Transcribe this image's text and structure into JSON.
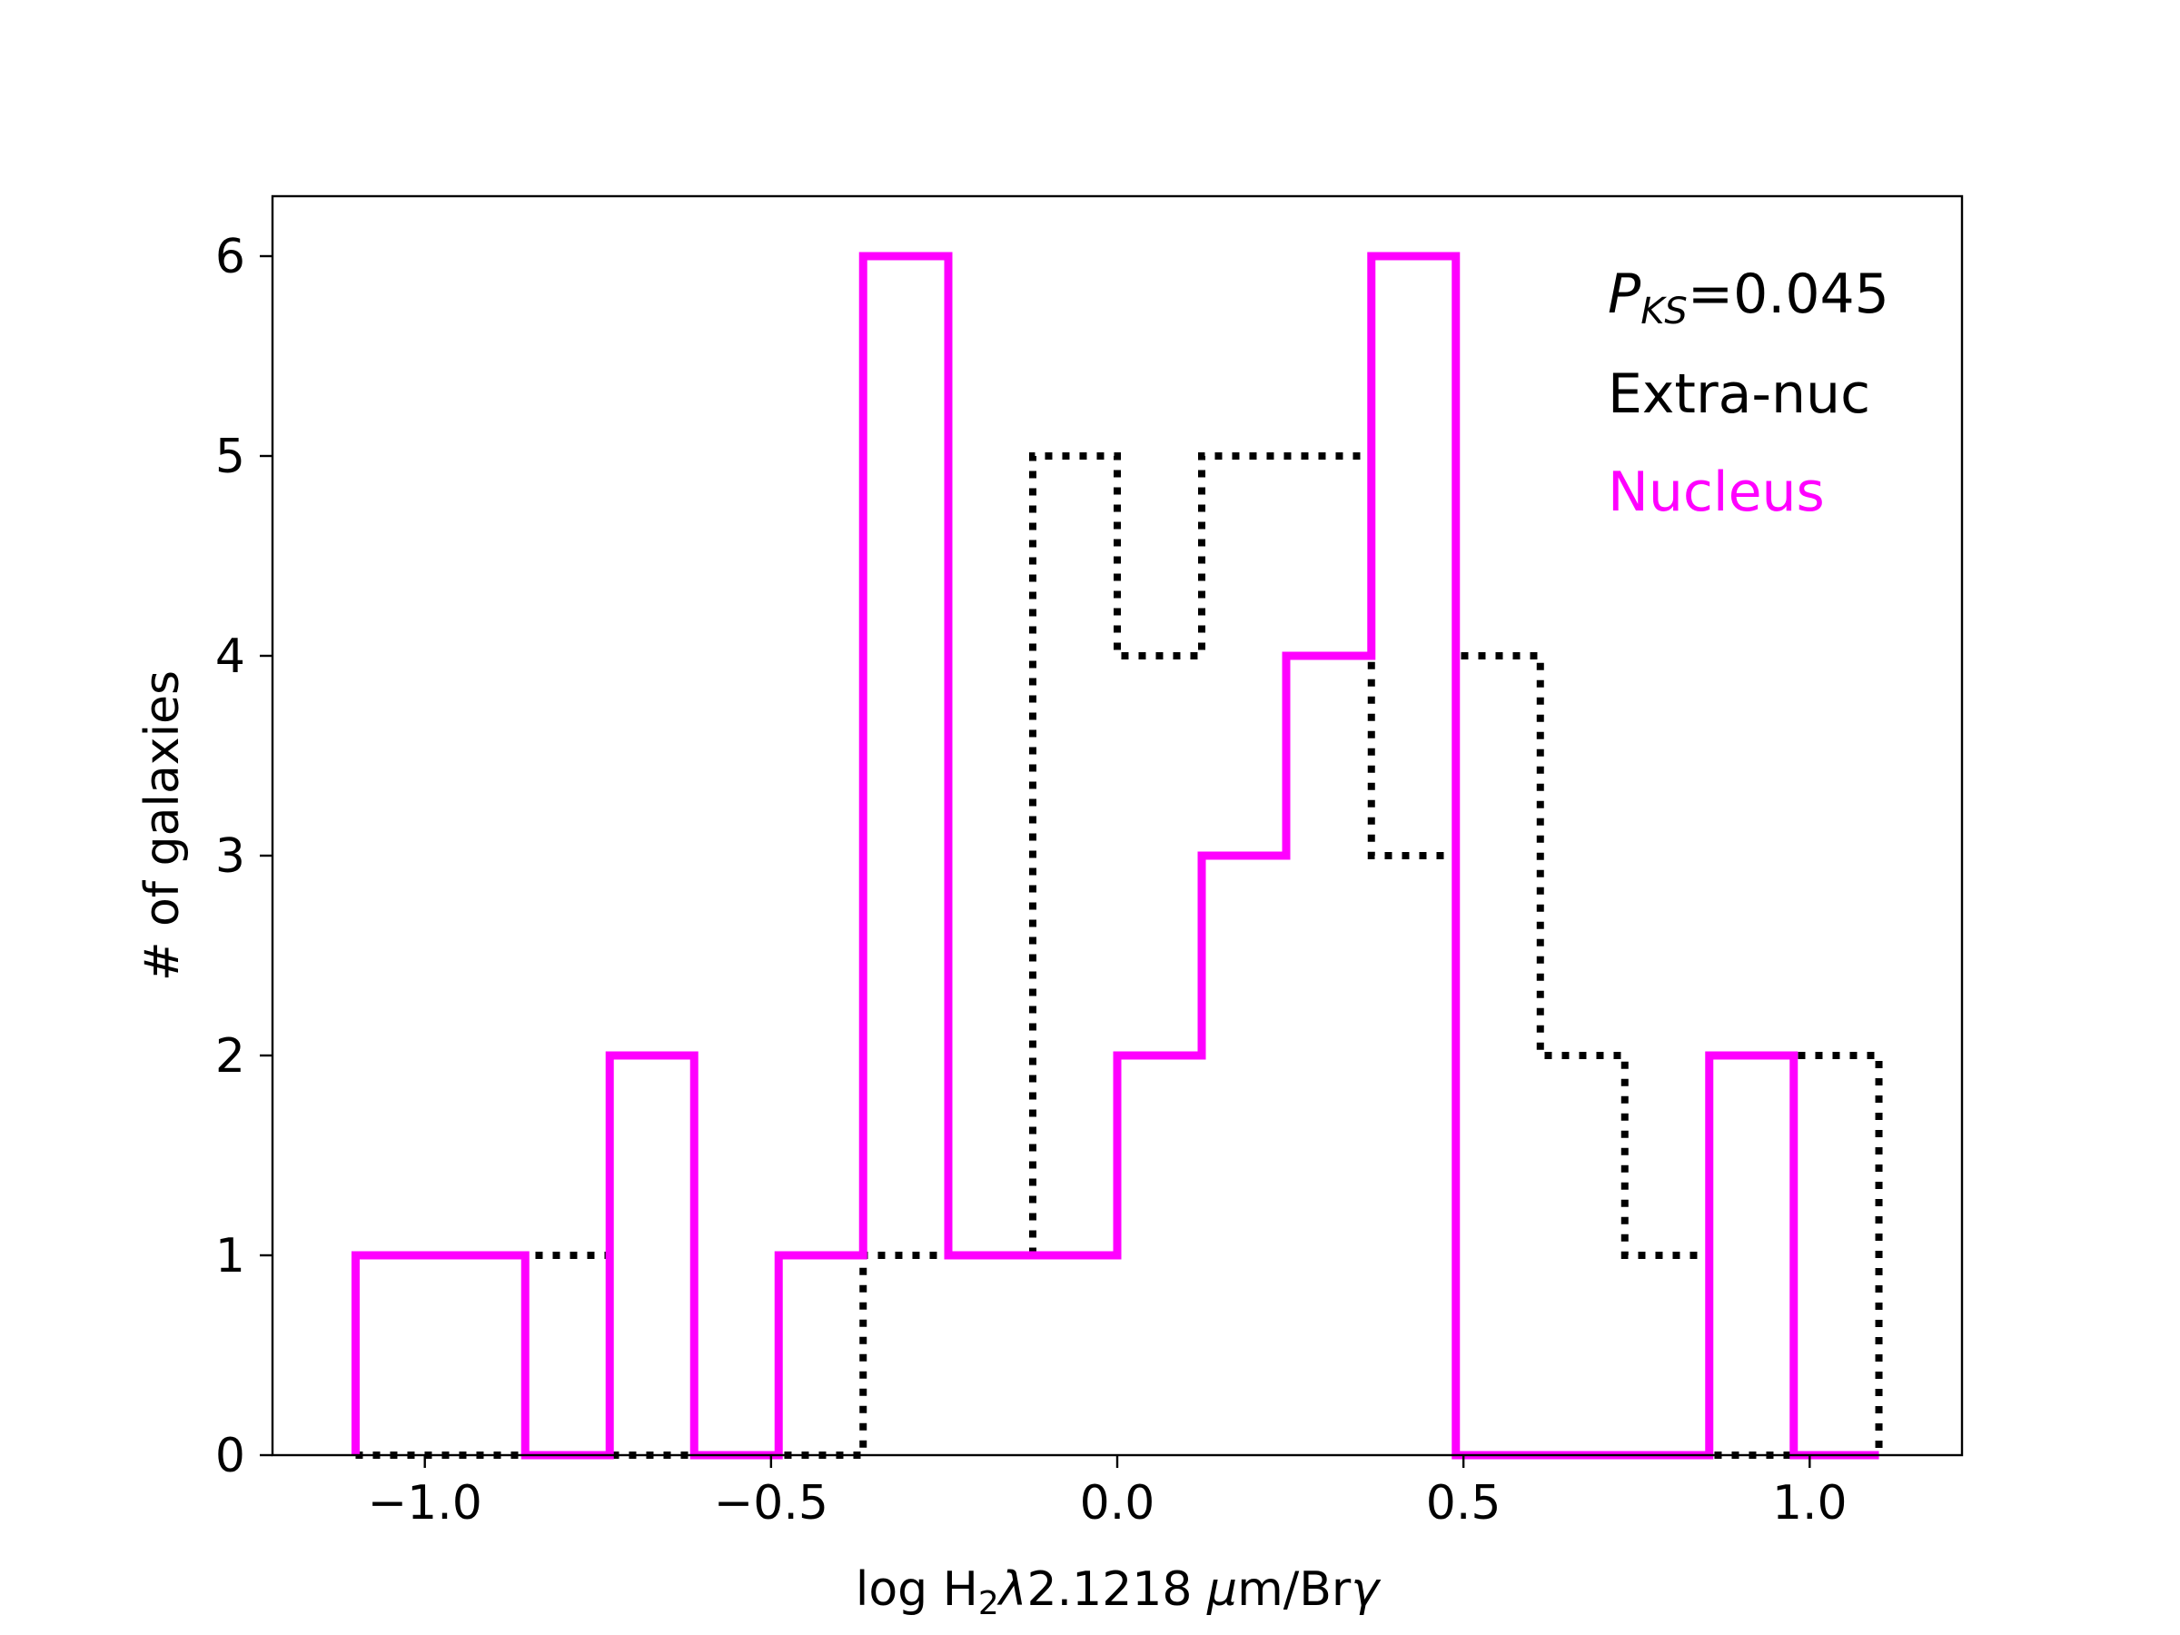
{
  "chart_data": {
    "type": "histogram",
    "xlabel": {
      "prefix": "log H",
      "sub": "2",
      "lambda": "λ",
      "mid": "2.1218 ",
      "mu": "μ",
      "suffix": "m/Br",
      "gamma": "γ"
    },
    "ylabel": "# of galaxies",
    "xlim": [
      -1.22,
      1.22
    ],
    "ylim": [
      0,
      6.3
    ],
    "xticks": [
      -1.0,
      -0.5,
      0.0,
      0.5,
      1.0
    ],
    "xtick_labels": [
      "−1.0",
      "−0.5",
      "0.0",
      "0.5",
      "1.0"
    ],
    "yticks": [
      0,
      1,
      2,
      3,
      4,
      5,
      6
    ],
    "ytick_labels": [
      "0",
      "1",
      "2",
      "3",
      "4",
      "5",
      "6"
    ],
    "bin_edges": [
      -1.1,
      -0.977,
      -0.855,
      -0.733,
      -0.611,
      -0.489,
      -0.367,
      -0.244,
      -0.122,
      0.0,
      0.122,
      0.244,
      0.367,
      0.489,
      0.611,
      0.733,
      0.855,
      0.977,
      1.1
    ],
    "series": [
      {
        "name": "Extra-nuc",
        "color": "#000000",
        "style": "dotted",
        "counts": [
          0,
          0,
          1,
          0,
          0,
          0,
          1,
          1,
          5,
          4,
          5,
          5,
          3,
          4,
          2,
          1,
          0,
          2
        ]
      },
      {
        "name": "Nucleus",
        "color": "#ff00ff",
        "style": "solid",
        "counts": [
          1,
          1,
          0,
          2,
          0,
          1,
          6,
          1,
          1,
          2,
          3,
          4,
          6,
          0,
          0,
          0,
          2,
          0
        ]
      }
    ],
    "annotation": {
      "p_main": "P",
      "p_sub": "KS",
      "p_value": "=0.045"
    },
    "legend_position": "top-right"
  }
}
